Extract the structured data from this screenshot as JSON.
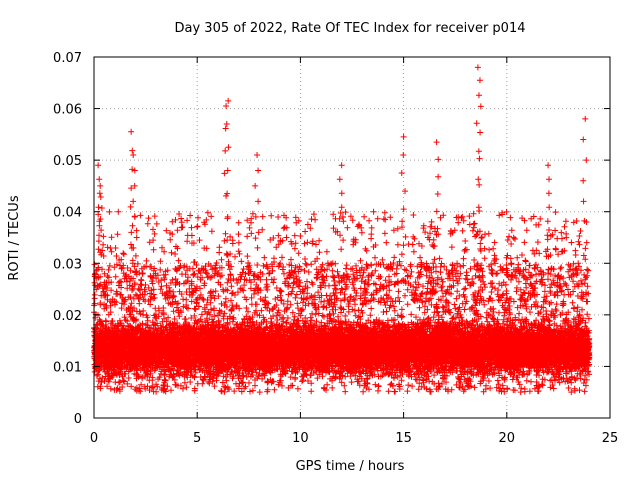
{
  "chart_data": {
    "type": "scatter",
    "title": "Day 305 of 2022, Rate Of TEC Index for receiver p014",
    "xlabel": "GPS time / hours",
    "ylabel": "ROTI / TECUs",
    "xlim": [
      0,
      25
    ],
    "ylim": [
      0,
      0.07
    ],
    "grid": true,
    "marker": "+",
    "x_ticks": [
      0,
      5,
      10,
      15,
      20,
      25
    ],
    "x_tick_labels": [
      "0",
      "5",
      "10",
      "15",
      "20",
      "25"
    ],
    "y_ticks": [
      0,
      0.01,
      0.02,
      0.03,
      0.04,
      0.05,
      0.06,
      0.07
    ],
    "y_tick_labels": [
      "0",
      "0.01",
      "0.02",
      "0.03",
      "0.04",
      "0.05",
      "0.06",
      "0.07"
    ],
    "series": [
      {
        "name": "ROTI",
        "color": "#ff0000",
        "x_range": [
          0,
          24
        ],
        "typical_range": [
          0.005,
          0.03
        ],
        "peaks": [
          {
            "x": 0.2,
            "y": 0.049
          },
          {
            "x": 0.3,
            "y": 0.045
          },
          {
            "x": 1.8,
            "y": 0.0555
          },
          {
            "x": 1.9,
            "y": 0.051
          },
          {
            "x": 6.4,
            "y": 0.0605
          },
          {
            "x": 6.5,
            "y": 0.0615
          },
          {
            "x": 7.9,
            "y": 0.051
          },
          {
            "x": 12.0,
            "y": 0.049
          },
          {
            "x": 15.0,
            "y": 0.0545
          },
          {
            "x": 16.6,
            "y": 0.0535
          },
          {
            "x": 18.6,
            "y": 0.068
          },
          {
            "x": 18.7,
            "y": 0.0655
          },
          {
            "x": 22.0,
            "y": 0.049
          },
          {
            "x": 23.8,
            "y": 0.058
          }
        ]
      }
    ]
  }
}
